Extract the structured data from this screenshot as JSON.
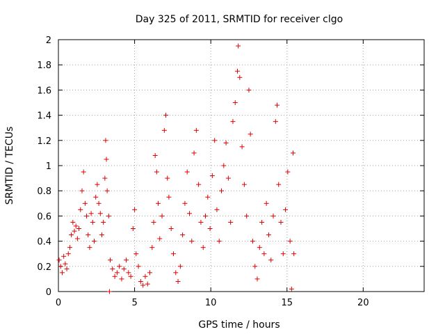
{
  "chart_data": {
    "type": "scatter",
    "title": "Day 325 of 2011, SRMTID for receiver clgo",
    "xlabel": "GPS time / hours",
    "ylabel": "SRMTID / TECUs",
    "xlim": [
      0,
      24
    ],
    "ylim": [
      0,
      2
    ],
    "xticks": [
      "0",
      "5",
      "10",
      "15",
      "20"
    ],
    "xtick_values": [
      0,
      5,
      10,
      15,
      20
    ],
    "yticks": [
      "0",
      "0.2",
      "0.4",
      "0.6",
      "0.8",
      "1",
      "1.2",
      "1.4",
      "1.6",
      "1.8",
      "2"
    ],
    "ytick_values": [
      0,
      0.2,
      0.4,
      0.6,
      0.8,
      1.0,
      1.2,
      1.4,
      1.6,
      1.8,
      2.0
    ],
    "grid": true,
    "marker": "+",
    "color": "#e00000",
    "series": [
      {
        "points": [
          [
            0.05,
            0.25
          ],
          [
            0.15,
            0.2
          ],
          [
            0.25,
            0.15
          ],
          [
            0.35,
            0.28
          ],
          [
            0.45,
            0.22
          ],
          [
            0.55,
            0.18
          ],
          [
            0.65,
            0.3
          ],
          [
            0.75,
            0.35
          ],
          [
            0.85,
            0.45
          ],
          [
            0.95,
            0.55
          ],
          [
            1.05,
            0.48
          ],
          [
            1.15,
            0.52
          ],
          [
            1.25,
            0.42
          ],
          [
            1.35,
            0.5
          ],
          [
            1.45,
            0.65
          ],
          [
            1.55,
            0.8
          ],
          [
            1.65,
            0.95
          ],
          [
            1.75,
            0.7
          ],
          [
            1.85,
            0.6
          ],
          [
            1.95,
            0.45
          ],
          [
            2.05,
            0.35
          ],
          [
            2.15,
            0.62
          ],
          [
            2.25,
            0.55
          ],
          [
            2.35,
            0.4
          ],
          [
            2.45,
            0.75
          ],
          [
            2.55,
            0.85
          ],
          [
            2.65,
            0.7
          ],
          [
            2.75,
            0.62
          ],
          [
            2.85,
            0.45
          ],
          [
            2.95,
            0.55
          ],
          [
            3.05,
            0.9
          ],
          [
            3.1,
            1.2
          ],
          [
            3.15,
            1.05
          ],
          [
            3.2,
            0.8
          ],
          [
            3.3,
            0.6
          ],
          [
            3.4,
            0.25
          ],
          [
            3.55,
            0.18
          ],
          [
            3.7,
            0.12
          ],
          [
            3.85,
            0.15
          ],
          [
            4.0,
            0.2
          ],
          [
            4.15,
            0.1
          ],
          [
            4.3,
            0.18
          ],
          [
            4.45,
            0.25
          ],
          [
            4.6,
            0.15
          ],
          [
            4.75,
            0.12
          ],
          [
            4.9,
            0.5
          ],
          [
            5.0,
            0.65
          ],
          [
            5.1,
            0.3
          ],
          [
            5.25,
            0.2
          ],
          [
            5.4,
            0.08
          ],
          [
            5.55,
            0.05
          ],
          [
            5.7,
            0.12
          ],
          [
            5.85,
            0.06
          ],
          [
            6.0,
            0.15
          ],
          [
            6.15,
            0.35
          ],
          [
            6.25,
            0.55
          ],
          [
            6.35,
            1.08
          ],
          [
            6.45,
            0.95
          ],
          [
            6.55,
            0.7
          ],
          [
            6.65,
            0.42
          ],
          [
            6.8,
            0.6
          ],
          [
            6.95,
            1.28
          ],
          [
            7.05,
            1.4
          ],
          [
            7.15,
            0.9
          ],
          [
            7.25,
            0.75
          ],
          [
            7.4,
            0.5
          ],
          [
            7.55,
            0.3
          ],
          [
            7.7,
            0.15
          ],
          [
            7.85,
            0.08
          ],
          [
            8.0,
            0.2
          ],
          [
            8.15,
            0.45
          ],
          [
            8.3,
            0.7
          ],
          [
            8.45,
            0.95
          ],
          [
            8.6,
            0.62
          ],
          [
            8.75,
            0.4
          ],
          [
            8.9,
            1.1
          ],
          [
            9.05,
            1.28
          ],
          [
            9.2,
            0.85
          ],
          [
            9.35,
            0.55
          ],
          [
            9.5,
            0.35
          ],
          [
            9.65,
            0.6
          ],
          [
            9.8,
            0.75
          ],
          [
            9.95,
            0.5
          ],
          [
            10.1,
            0.92
          ],
          [
            10.25,
            1.2
          ],
          [
            10.4,
            0.65
          ],
          [
            10.55,
            0.4
          ],
          [
            10.7,
            0.8
          ],
          [
            10.85,
            1.0
          ],
          [
            11.0,
            1.18
          ],
          [
            11.15,
            0.9
          ],
          [
            11.3,
            0.55
          ],
          [
            11.45,
            1.35
          ],
          [
            11.6,
            1.5
          ],
          [
            11.75,
            1.75
          ],
          [
            11.8,
            1.95
          ],
          [
            11.9,
            1.7
          ],
          [
            12.05,
            1.15
          ],
          [
            12.2,
            0.85
          ],
          [
            12.35,
            0.6
          ],
          [
            12.5,
            1.6
          ],
          [
            12.6,
            1.25
          ],
          [
            12.75,
            0.4
          ],
          [
            12.9,
            0.2
          ],
          [
            13.05,
            0.1
          ],
          [
            13.2,
            0.35
          ],
          [
            13.35,
            0.55
          ],
          [
            13.5,
            0.3
          ],
          [
            13.65,
            0.7
          ],
          [
            13.8,
            0.45
          ],
          [
            13.95,
            0.25
          ],
          [
            14.1,
            0.6
          ],
          [
            14.25,
            1.35
          ],
          [
            14.35,
            1.48
          ],
          [
            14.45,
            0.85
          ],
          [
            14.6,
            0.55
          ],
          [
            14.75,
            0.3
          ],
          [
            14.9,
            0.65
          ],
          [
            15.05,
            0.95
          ],
          [
            15.2,
            0.4
          ],
          [
            15.3,
            0.02
          ],
          [
            15.4,
            1.1
          ],
          [
            15.45,
            0.3
          ],
          [
            3.35,
            0.0
          ]
        ]
      }
    ]
  }
}
